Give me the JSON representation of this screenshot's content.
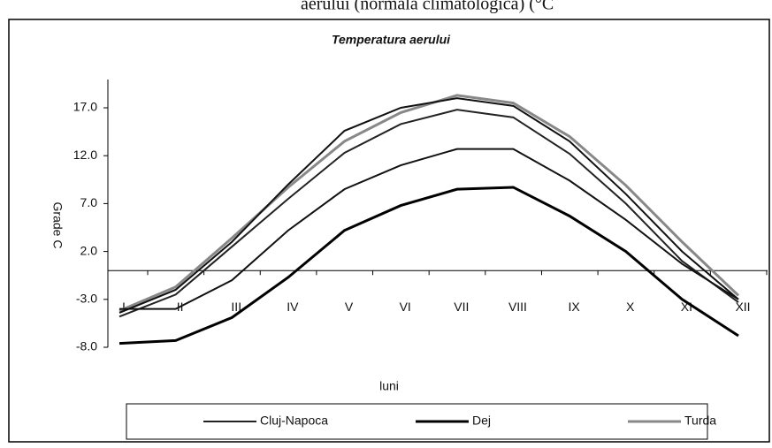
{
  "header": "aerului (normala climatologica) (°C",
  "chart_data": {
    "type": "line",
    "title": "Temperatura aerului",
    "xlabel": "luni",
    "ylabel": "Grade C",
    "categories": [
      "I",
      "II",
      "III",
      "IV",
      "V",
      "VI",
      "VII",
      "VIII",
      "IX",
      "X",
      "XI",
      "XII"
    ],
    "ylim": [
      -8,
      17
    ],
    "yticks": [
      {
        "value": -8,
        "label": "-8.0"
      },
      {
        "value": -3,
        "label": "-3.0"
      },
      {
        "value": 2,
        "label": "2.0"
      },
      {
        "value": 7,
        "label": "7.0"
      },
      {
        "value": 12,
        "label": "12.0"
      },
      {
        "value": 17,
        "label": "17.0"
      }
    ],
    "series": [
      {
        "name": "Cluj-Napoca",
        "color": "#222222",
        "width": 2,
        "values": [
          -4.8,
          -2.5,
          2.5,
          7.5,
          12.3,
          15.3,
          16.8,
          16.0,
          12.2,
          7.0,
          1.0,
          -3.3
        ]
      },
      {
        "name": "Dej",
        "color": "#000000",
        "width": 3,
        "values": [
          -7.6,
          -7.3,
          -4.9,
          -0.7,
          4.2,
          6.8,
          8.5,
          8.7,
          5.7,
          2.0,
          -3.0,
          -6.8
        ]
      },
      {
        "name": "Turda",
        "color": "#888888",
        "width": 3,
        "values": [
          -4.2,
          -1.7,
          3.4,
          8.7,
          13.5,
          16.5,
          18.3,
          17.5,
          14.0,
          8.9,
          3.0,
          -2.6
        ]
      },
      {
        "color": "#111111",
        "width": 2,
        "values": [
          -4.4,
          -2.0,
          3.0,
          9.0,
          14.6,
          17.0,
          18.0,
          17.2,
          13.5,
          8.0,
          2.0,
          -3.0
        ]
      },
      {
        "color": "#111111",
        "width": 2,
        "values": [
          -4.0,
          -4.0,
          -1.0,
          4.2,
          8.5,
          11.0,
          12.7,
          12.7,
          9.4,
          5.3,
          0.7,
          -3.0
        ]
      }
    ]
  }
}
